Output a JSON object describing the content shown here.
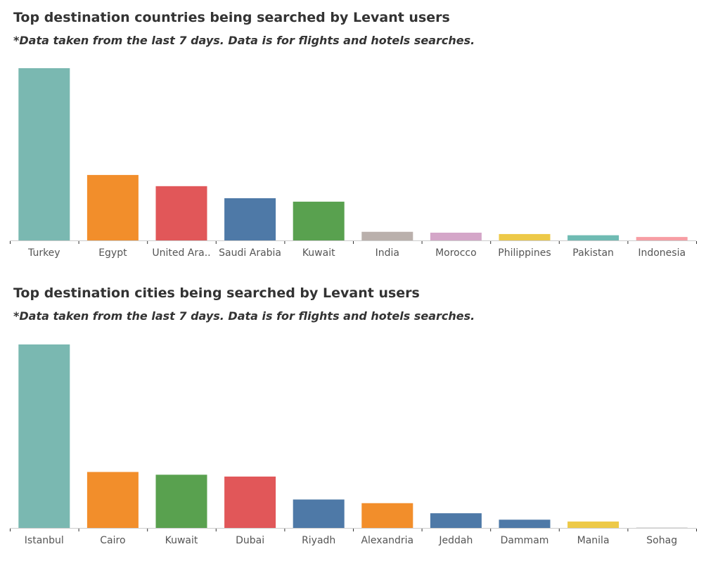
{
  "charts": [
    {
      "title": "Top destination countries being searched by Levant users",
      "subtitle": "*Data taken from the last 7 days. Data is for flights and hotels searches."
    },
    {
      "title": "Top destination cities being searched by Levant users",
      "subtitle": "*Data taken from the last 7 days. Data is for flights and hotels searches."
    }
  ],
  "chart_data": [
    {
      "type": "bar",
      "title": "Top destination countries being searched by Levant users",
      "subtitle": "*Data taken from the last 7 days. Data is for flights and hotels searches.",
      "categories": [
        "Turkey",
        "Egypt",
        "United Ara..",
        "Saudi Arabia",
        "Kuwait",
        "India",
        "Morocco",
        "Philippines",
        "Pakistan",
        "Indonesia"
      ],
      "values": [
        100,
        38,
        31.5,
        24.5,
        22.5,
        5,
        4.5,
        3.7,
        3,
        2
      ],
      "colors": [
        "#7ab8b1",
        "#f28e2b",
        "#e15759",
        "#4e79a7",
        "#59a14f",
        "#bab0ac",
        "#d4a6c8",
        "#edc948",
        "#6fbbb3",
        "#f79ea4"
      ],
      "xlabel": "",
      "ylabel": "",
      "ylim": [
        0,
        100
      ],
      "grid": false,
      "legend": "none"
    },
    {
      "type": "bar",
      "title": "Top destination cities being searched by Levant users",
      "subtitle": "*Data taken from the last 7 days. Data is for flights and hotels searches.",
      "categories": [
        "Istanbul",
        "Cairo",
        "Kuwait",
        "Dubai",
        "Riyadh",
        "Alexandria",
        "Jeddah",
        "Dammam",
        "Manila",
        "Sohag"
      ],
      "values": [
        100,
        30.5,
        29,
        28,
        15.5,
        13.5,
        8,
        4.5,
        3.5,
        0.3
      ],
      "colors": [
        "#7ab8b1",
        "#f28e2b",
        "#59a14f",
        "#e15759",
        "#4e79a7",
        "#f28e2b",
        "#4e79a7",
        "#4e79a7",
        "#edc948",
        "#dddddd"
      ],
      "xlabel": "",
      "ylabel": "",
      "ylim": [
        0,
        100
      ],
      "grid": false,
      "legend": "none"
    }
  ]
}
